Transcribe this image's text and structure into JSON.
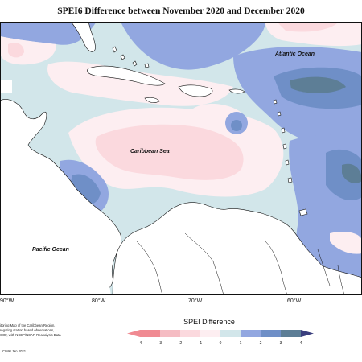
{
  "title": "SPEI6 Difference between November 2020 and December 2020",
  "map": {
    "ocean_labels": {
      "atlantic": "Atlantic Ocean",
      "caribbean": "Caribbean Sea",
      "pacific": "Pacific Ocean"
    },
    "longitudes": [
      "90°W",
      "80°W",
      "70°W",
      "60°W"
    ]
  },
  "legend": {
    "title": "SPEI Difference",
    "ticks": [
      "-4",
      "-3",
      "-2",
      "-1",
      "0",
      "1",
      "2",
      "3",
      "4"
    ],
    "colors": [
      "#f08a92",
      "#f5bcc3",
      "#fbd9de",
      "#fdeef1",
      "#d2e6ea",
      "#92a7e0",
      "#6f8fc7",
      "#5d7e96",
      "#3a3f7e"
    ]
  },
  "note": [
    "itoring Map of the Caribbean Region.",
    "regating station based observations,",
    "COF, with NCEP/NCAR Reanalysis Data"
  ],
  "credit": "CIMH Jan 2021"
}
